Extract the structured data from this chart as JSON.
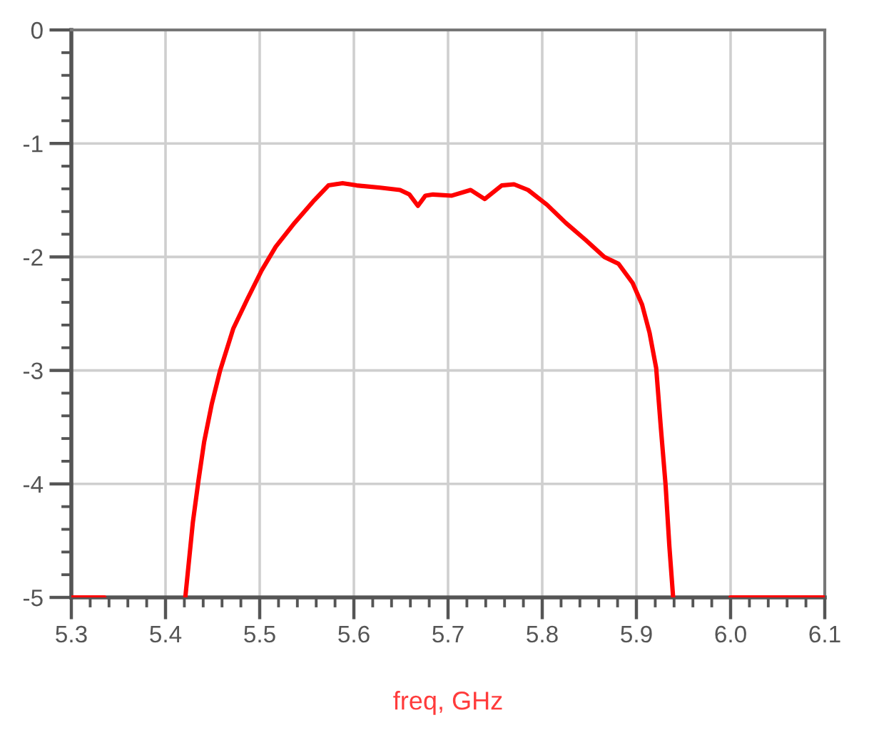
{
  "chart_data": {
    "type": "line",
    "xlabel": "freq, GHz",
    "xlim": [
      5.3,
      6.1
    ],
    "ylim": [
      -5,
      0
    ],
    "xticks": [
      5.3,
      {
        "value": 5.32,
        "label": null
      },
      {
        "value": 5.34,
        "label": null
      },
      {
        "value": 5.36,
        "label": null
      },
      {
        "value": 5.38,
        "label": null
      },
      5.4,
      {
        "value": 5.42,
        "label": null
      },
      {
        "value": 5.44,
        "label": null
      },
      {
        "value": 5.46,
        "label": null
      },
      {
        "value": 5.48,
        "label": null
      },
      5.5,
      {
        "value": 5.52,
        "label": null
      },
      {
        "value": 5.54,
        "label": null
      },
      {
        "value": 5.56,
        "label": null
      },
      {
        "value": 5.58,
        "label": null
      },
      5.6,
      {
        "value": 5.62,
        "label": null
      },
      {
        "value": 5.64,
        "label": null
      },
      {
        "value": 5.66,
        "label": null
      },
      {
        "value": 5.68,
        "label": null
      },
      5.7,
      {
        "value": 5.72,
        "label": null
      },
      {
        "value": 5.74,
        "label": null
      },
      {
        "value": 5.76,
        "label": null
      },
      {
        "value": 5.78,
        "label": null
      },
      5.8,
      {
        "value": 5.82,
        "label": null
      },
      {
        "value": 5.84,
        "label": null
      },
      {
        "value": 5.86,
        "label": null
      },
      {
        "value": 5.88,
        "label": null
      },
      5.9,
      {
        "value": 5.92,
        "label": null
      },
      {
        "value": 5.94,
        "label": null
      },
      {
        "value": 5.96,
        "label": null
      },
      {
        "value": 5.98,
        "label": null
      },
      {
        "value": 6,
        "label": "6.0"
      },
      {
        "value": 6.02,
        "label": null
      },
      {
        "value": 6.04,
        "label": null
      },
      {
        "value": 6.06,
        "label": null
      },
      {
        "value": 6.08,
        "label": null
      },
      6.1
    ],
    "yticks": [
      0,
      {
        "value": -0.2,
        "label": null
      },
      {
        "value": -0.4,
        "label": null
      },
      {
        "value": -0.6,
        "label": null
      },
      {
        "value": -0.8,
        "label": null
      },
      -1,
      {
        "value": -1.2,
        "label": null
      },
      {
        "value": -1.4,
        "label": null
      },
      {
        "value": -1.6,
        "label": null
      },
      {
        "value": -1.8,
        "label": null
      },
      -2,
      {
        "value": -2.2,
        "label": null
      },
      {
        "value": -2.4,
        "label": null
      },
      {
        "value": -2.6,
        "label": null
      },
      {
        "value": -2.8,
        "label": null
      },
      -3,
      {
        "value": -3.2,
        "label": null
      },
      {
        "value": -3.4,
        "label": null
      },
      {
        "value": -3.6,
        "label": null
      },
      {
        "value": -3.8,
        "label": null
      },
      -4,
      {
        "value": -4.2,
        "label": null
      },
      {
        "value": -4.4,
        "label": null
      },
      {
        "value": -4.6,
        "label": null
      },
      {
        "value": -4.8,
        "label": null
      },
      -5
    ],
    "grid": true,
    "line_style": "solid",
    "series": [
      {
        "color": "#ff0000",
        "x": [
          5.3,
          5.335
        ],
        "values": [
          -5,
          -5
        ]
      },
      {
        "color": "#ff0000",
        "x": [
          5.421,
          5.429,
          5.435,
          5.441,
          5.449,
          5.458,
          5.472,
          5.487,
          5.502,
          5.517,
          5.537,
          5.558,
          5.573,
          5.588,
          5.603,
          5.628,
          5.649,
          5.659,
          5.668,
          5.676,
          5.684,
          5.704,
          5.724,
          5.739,
          5.757,
          5.77,
          5.785,
          5.805,
          5.825,
          5.846,
          5.866,
          5.881,
          5.896,
          5.906,
          5.914,
          5.921,
          5.926,
          5.931,
          5.935,
          5.939
        ],
        "values": [
          -5.0,
          -4.34,
          -3.97,
          -3.63,
          -3.3,
          -3.0,
          -2.63,
          -2.37,
          -2.12,
          -1.91,
          -1.7,
          -1.5,
          -1.37,
          -1.35,
          -1.37,
          -1.39,
          -1.41,
          -1.45,
          -1.55,
          -1.46,
          -1.45,
          -1.46,
          -1.41,
          -1.49,
          -1.37,
          -1.36,
          -1.41,
          -1.54,
          -1.7,
          -1.85,
          -2.0,
          -2.06,
          -2.23,
          -2.42,
          -2.67,
          -2.98,
          -3.51,
          -4.01,
          -4.55,
          -5.0
        ]
      },
      {
        "color": "#ff0000",
        "x": [
          6.0,
          6.1
        ],
        "values": [
          -5,
          -5
        ]
      }
    ]
  }
}
